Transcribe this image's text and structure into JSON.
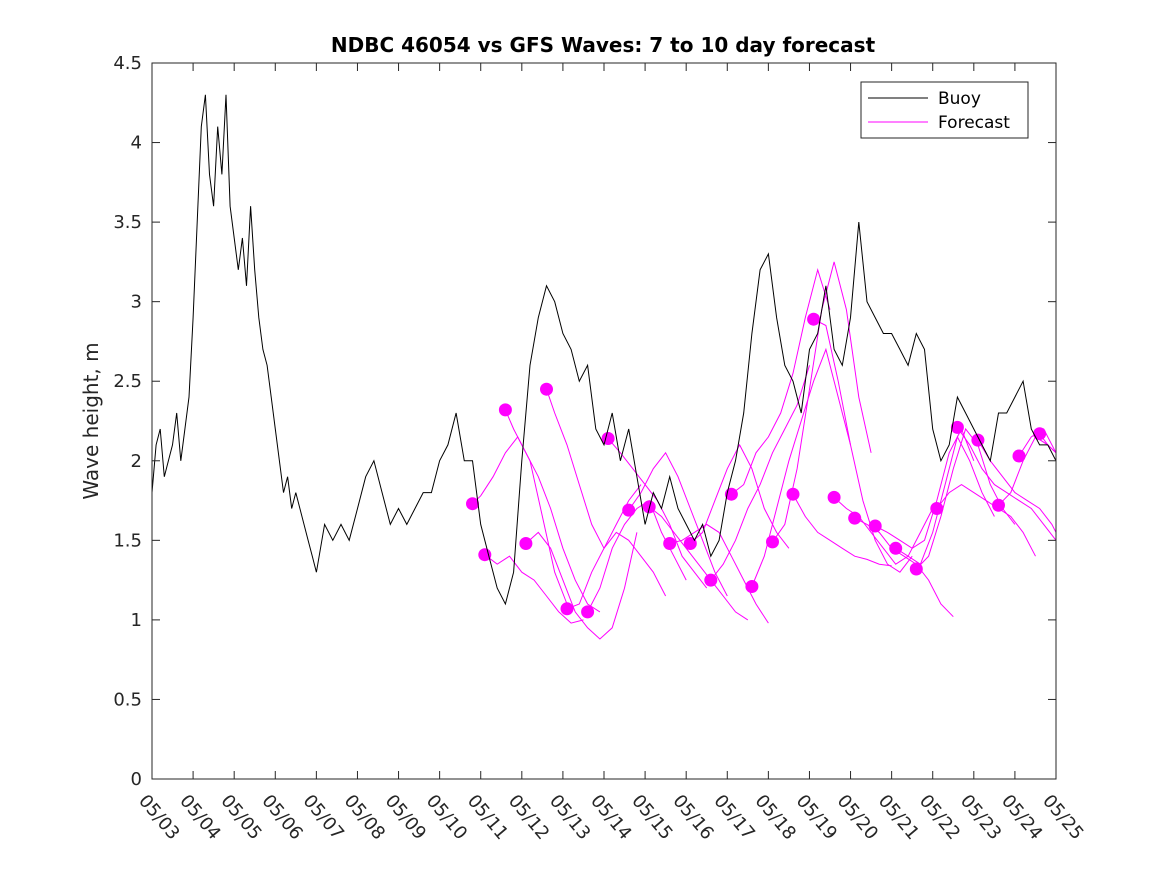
{
  "chart_data": {
    "type": "line",
    "title": "NDBC 46054 vs GFS Waves: 7 to 10 day forecast",
    "xlabel": "",
    "ylabel": "Wave height, m",
    "x_tick_labels": [
      "05/03",
      "05/04",
      "05/05",
      "05/06",
      "05/07",
      "05/08",
      "05/09",
      "05/10",
      "05/11",
      "05/12",
      "05/13",
      "05/14",
      "05/15",
      "05/16",
      "05/17",
      "05/18",
      "05/19",
      "05/20",
      "05/21",
      "05/22",
      "05/23",
      "05/24",
      "05/25"
    ],
    "y_ticks": [
      0,
      0.5,
      1,
      1.5,
      2,
      2.5,
      3,
      3.5,
      4,
      4.5
    ],
    "y_tick_labels": [
      "0",
      "0.5",
      "1",
      "1.5",
      "2",
      "2.5",
      "3",
      "3.5",
      "4",
      "4.5"
    ],
    "xlim_days": [
      0,
      22
    ],
    "ylim": [
      0,
      4.5
    ],
    "grid": false,
    "legend": {
      "position": "top-right",
      "entries": [
        {
          "name": "Buoy",
          "color": "#000000"
        },
        {
          "name": "Forecast",
          "color": "#ff00ff"
        }
      ]
    },
    "series": [
      {
        "name": "Buoy",
        "color": "#000000",
        "x_days": [
          0,
          0.1,
          0.2,
          0.3,
          0.4,
          0.5,
          0.6,
          0.7,
          0.8,
          0.9,
          1.0,
          1.1,
          1.2,
          1.3,
          1.4,
          1.5,
          1.6,
          1.7,
          1.8,
          1.9,
          2.0,
          2.1,
          2.2,
          2.3,
          2.4,
          2.5,
          2.6,
          2.7,
          2.8,
          2.9,
          3.0,
          3.1,
          3.2,
          3.3,
          3.4,
          3.5,
          3.6,
          3.7,
          3.8,
          3.9,
          4.0,
          4.2,
          4.4,
          4.6,
          4.8,
          5.0,
          5.2,
          5.4,
          5.6,
          5.8,
          6.0,
          6.2,
          6.4,
          6.6,
          6.8,
          7.0,
          7.2,
          7.4,
          7.6,
          7.8,
          8.0,
          8.2,
          8.4,
          8.6,
          8.8,
          9.0,
          9.2,
          9.4,
          9.6,
          9.8,
          10.0,
          10.2,
          10.4,
          10.6,
          10.8,
          11.0,
          11.2,
          11.4,
          11.6,
          11.8,
          12.0,
          12.2,
          12.4,
          12.6,
          12.8,
          13.0,
          13.2,
          13.4,
          13.6,
          13.8,
          14.0,
          14.2,
          14.4,
          14.6,
          14.8,
          15.0,
          15.2,
          15.4,
          15.6,
          15.8,
          16.0,
          16.2,
          16.4,
          16.6,
          16.8,
          17.0,
          17.2,
          17.4,
          17.6,
          17.8,
          18.0,
          18.2,
          18.4,
          18.6,
          18.8,
          19.0,
          19.2,
          19.4,
          19.6,
          19.8,
          20.0,
          20.2,
          20.4,
          20.6,
          20.8,
          21.0,
          21.2,
          21.4,
          21.6,
          21.8,
          22.0
        ],
        "values": [
          1.8,
          2.1,
          2.2,
          1.9,
          2.0,
          2.1,
          2.3,
          2.0,
          2.2,
          2.4,
          2.9,
          3.5,
          4.1,
          4.3,
          3.8,
          3.6,
          4.1,
          3.8,
          4.3,
          3.6,
          3.4,
          3.2,
          3.4,
          3.1,
          3.6,
          3.2,
          2.9,
          2.7,
          2.6,
          2.4,
          2.2,
          2.0,
          1.8,
          1.9,
          1.7,
          1.8,
          1.7,
          1.6,
          1.5,
          1.4,
          1.3,
          1.6,
          1.5,
          1.6,
          1.5,
          1.7,
          1.9,
          2.0,
          1.8,
          1.6,
          1.7,
          1.6,
          1.7,
          1.8,
          1.8,
          2.0,
          2.1,
          2.3,
          2.0,
          2.0,
          1.6,
          1.4,
          1.2,
          1.1,
          1.3,
          2.0,
          2.6,
          2.9,
          3.1,
          3.0,
          2.8,
          2.7,
          2.5,
          2.6,
          2.2,
          2.1,
          2.3,
          2.0,
          2.2,
          1.9,
          1.6,
          1.8,
          1.7,
          1.9,
          1.7,
          1.6,
          1.5,
          1.6,
          1.4,
          1.5,
          1.8,
          2.0,
          2.3,
          2.8,
          3.2,
          3.3,
          2.9,
          2.6,
          2.5,
          2.3,
          2.7,
          2.8,
          3.1,
          2.7,
          2.6,
          2.9,
          3.5,
          3.0,
          2.9,
          2.8,
          2.8,
          2.7,
          2.6,
          2.8,
          2.7,
          2.2,
          2.0,
          2.1,
          2.4,
          2.3,
          2.2,
          2.1,
          2.0,
          2.3,
          2.3,
          2.4,
          2.5,
          2.2,
          2.1,
          2.1,
          2.0
        ]
      },
      {
        "name": "Forecast",
        "color": "#ff00ff",
        "runs": [
          {
            "x_days": [
              7.8,
              8.0,
              8.3,
              8.6,
              8.9,
              9.2,
              9.5,
              9.8,
              10.1
            ],
            "values": [
              1.73,
              1.78,
              1.9,
              2.05,
              2.15,
              2.0,
              1.65,
              1.3,
              1.1
            ]
          },
          {
            "x_days": [
              8.1,
              8.4,
              8.7,
              9.0,
              9.3,
              9.6,
              9.9,
              10.2,
              10.5
            ],
            "values": [
              1.41,
              1.35,
              1.4,
              1.3,
              1.25,
              1.15,
              1.05,
              0.98,
              1.0
            ]
          },
          {
            "x_days": [
              8.6,
              8.8,
              9.1,
              9.4,
              9.7,
              10.0,
              10.3,
              10.6,
              10.9
            ],
            "values": [
              2.32,
              2.2,
              2.05,
              1.9,
              1.7,
              1.45,
              1.25,
              1.1,
              1.05
            ]
          },
          {
            "x_days": [
              9.1,
              9.4,
              9.7,
              10.0,
              10.3,
              10.6,
              10.9,
              11.2,
              11.5,
              11.8
            ],
            "values": [
              1.48,
              1.55,
              1.45,
              1.25,
              1.05,
              0.95,
              0.88,
              0.95,
              1.2,
              1.55
            ]
          },
          {
            "x_days": [
              9.6,
              9.8,
              10.1,
              10.4,
              10.7,
              11.0,
              11.3,
              11.6,
              11.9
            ],
            "values": [
              2.45,
              2.3,
              2.1,
              1.85,
              1.6,
              1.45,
              1.6,
              1.75,
              1.85
            ]
          },
          {
            "x_days": [
              10.1,
              10.4,
              10.7,
              11.0,
              11.3,
              11.6,
              11.9,
              12.2,
              12.5
            ],
            "values": [
              1.07,
              1.1,
              1.3,
              1.45,
              1.55,
              1.5,
              1.4,
              1.3,
              1.15
            ]
          },
          {
            "x_days": [
              10.6,
              10.9,
              11.2,
              11.5,
              11.8,
              12.1,
              12.4,
              12.7,
              13.0
            ],
            "values": [
              1.05,
              1.2,
              1.45,
              1.6,
              1.7,
              1.75,
              1.55,
              1.4,
              1.25
            ]
          },
          {
            "x_days": [
              11.1,
              11.4,
              11.7,
              12.0,
              12.3,
              12.6,
              12.9,
              13.2,
              13.5
            ],
            "values": [
              2.14,
              2.05,
              1.95,
              1.85,
              1.75,
              1.6,
              1.4,
              1.3,
              1.2
            ]
          },
          {
            "x_days": [
              11.6,
              11.9,
              12.2,
              12.5,
              12.8,
              13.1,
              13.4,
              13.7,
              14.0
            ],
            "values": [
              1.69,
              1.8,
              1.95,
              2.05,
              1.9,
              1.7,
              1.5,
              1.3,
              1.15
            ]
          },
          {
            "x_days": [
              12.1,
              12.4,
              12.7,
              13.0,
              13.3,
              13.6,
              13.9,
              14.2,
              14.5
            ],
            "values": [
              1.71,
              1.65,
              1.55,
              1.45,
              1.35,
              1.25,
              1.15,
              1.05,
              1.0
            ]
          },
          {
            "x_days": [
              12.6,
              12.9,
              13.2,
              13.5,
              13.8,
              14.1,
              14.4,
              14.7,
              15.0
            ],
            "values": [
              1.48,
              1.5,
              1.55,
              1.6,
              1.55,
              1.4,
              1.25,
              1.1,
              0.98
            ]
          },
          {
            "x_days": [
              13.1,
              13.4,
              13.7,
              14.0,
              14.3,
              14.6,
              14.9,
              15.2,
              15.5
            ],
            "values": [
              1.48,
              1.55,
              1.75,
              1.95,
              2.1,
              1.95,
              1.7,
              1.55,
              1.45
            ]
          },
          {
            "x_days": [
              13.6,
              13.9,
              14.2,
              14.5,
              14.8,
              15.1,
              15.4,
              15.7,
              16.0
            ],
            "values": [
              1.25,
              1.35,
              1.5,
              1.7,
              1.85,
              2.05,
              2.2,
              2.35,
              2.6
            ]
          },
          {
            "x_days": [
              14.1,
              14.4,
              14.7,
              15.0,
              15.3,
              15.6,
              15.9,
              16.2,
              16.5
            ],
            "values": [
              1.79,
              1.85,
              2.05,
              2.15,
              2.3,
              2.55,
              2.9,
              3.2,
              2.95
            ]
          },
          {
            "x_days": [
              14.6,
              14.9,
              15.2,
              15.5,
              15.8,
              16.1,
              16.4,
              16.7,
              17.0
            ],
            "values": [
              1.21,
              1.4,
              1.7,
              2.0,
              2.25,
              2.5,
              2.7,
              2.4,
              2.1
            ]
          },
          {
            "x_days": [
              15.1,
              15.4,
              15.7,
              16.0,
              16.3,
              16.6,
              16.9,
              17.2,
              17.5
            ],
            "values": [
              1.49,
              1.6,
              1.95,
              2.45,
              2.95,
              3.25,
              2.95,
              2.4,
              2.05
            ]
          },
          {
            "x_days": [
              15.6,
              15.9,
              16.2,
              16.5,
              16.8,
              17.1,
              17.4,
              17.7,
              18.0
            ],
            "values": [
              1.79,
              1.65,
              1.55,
              1.5,
              1.45,
              1.4,
              1.38,
              1.35,
              1.34
            ]
          },
          {
            "x_days": [
              16.1,
              16.4,
              16.7,
              17.0,
              17.3,
              17.6,
              17.9,
              18.2,
              18.5
            ],
            "values": [
              2.89,
              2.85,
              2.5,
              2.1,
              1.75,
              1.5,
              1.35,
              1.3,
              1.4
            ]
          },
          {
            "x_days": [
              16.6,
              16.9,
              17.2,
              17.5,
              17.8,
              18.1,
              18.4,
              18.7,
              19.0
            ],
            "values": [
              1.77,
              1.7,
              1.65,
              1.55,
              1.45,
              1.35,
              1.4,
              1.55,
              1.7
            ]
          },
          {
            "x_days": [
              17.1,
              17.4,
              17.7,
              18.0,
              18.3,
              18.6,
              18.9,
              19.2,
              19.5
            ],
            "values": [
              1.64,
              1.6,
              1.55,
              1.45,
              1.4,
              1.35,
              1.25,
              1.1,
              1.02
            ]
          },
          {
            "x_days": [
              17.6,
              17.9,
              18.2,
              18.5,
              18.8,
              19.1,
              19.4,
              19.7,
              20.0
            ],
            "values": [
              1.59,
              1.55,
              1.5,
              1.45,
              1.5,
              1.75,
              2.05,
              2.2,
              2.0
            ]
          },
          {
            "x_days": [
              18.1,
              18.4,
              18.7,
              19.0,
              19.3,
              19.6,
              19.9,
              20.2,
              20.5
            ],
            "values": [
              1.45,
              1.4,
              1.35,
              1.55,
              1.85,
              2.15,
              2.0,
              1.8,
              1.65
            ]
          },
          {
            "x_days": [
              18.6,
              18.9,
              19.2,
              19.5,
              19.8,
              20.1,
              20.4,
              20.7,
              21.0
            ],
            "values": [
              1.32,
              1.4,
              1.65,
              1.95,
              2.2,
              2.1,
              1.85,
              1.7,
              1.6
            ]
          },
          {
            "x_days": [
              19.1,
              19.4,
              19.7,
              20.0,
              20.3,
              20.6,
              20.9,
              21.2,
              21.5
            ],
            "values": [
              1.7,
              1.8,
              1.85,
              1.8,
              1.75,
              1.7,
              1.65,
              1.55,
              1.4
            ]
          },
          {
            "x_days": [
              19.6,
              19.9,
              20.2,
              20.5,
              20.8,
              21.1,
              21.4,
              21.7,
              22.0
            ],
            "values": [
              2.21,
              2.1,
              1.95,
              1.85,
              1.8,
              1.75,
              1.7,
              1.6,
              1.5
            ]
          },
          {
            "x_days": [
              20.1,
              20.4,
              20.7,
              21.0,
              21.3,
              21.6,
              21.9,
              22.0
            ],
            "values": [
              2.13,
              2.0,
              1.9,
              1.8,
              1.75,
              1.7,
              1.6,
              1.55
            ]
          },
          {
            "x_days": [
              20.6,
              20.9,
              21.2,
              21.5,
              21.8,
              22.0
            ],
            "values": [
              1.72,
              1.8,
              2.0,
              2.15,
              2.1,
              2.05
            ]
          },
          {
            "x_days": [
              21.1,
              21.4,
              21.7,
              22.0
            ],
            "values": [
              2.03,
              2.15,
              2.2,
              2.05
            ]
          },
          {
            "x_days": [
              21.6,
              21.8,
              22.0
            ],
            "values": [
              2.17,
              2.1,
              2.05
            ]
          }
        ]
      }
    ]
  }
}
